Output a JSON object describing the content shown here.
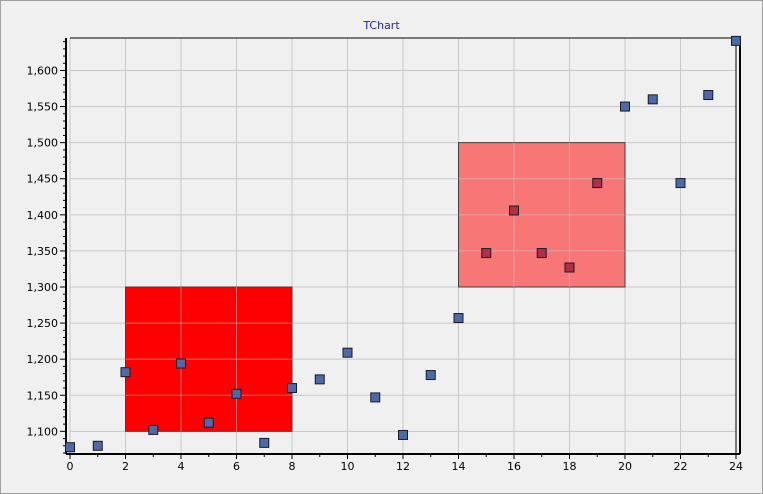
{
  "chart_data": {
    "type": "scatter",
    "title": "TChart",
    "xlabel": "",
    "ylabel": "",
    "xlim": [
      0,
      24
    ],
    "ylim": [
      1070,
      1645
    ],
    "x_ticks": [
      "0",
      "2",
      "4",
      "6",
      "8",
      "10",
      "12",
      "14",
      "16",
      "18",
      "20",
      "22",
      "24"
    ],
    "y_ticks": [
      "1,100",
      "1,150",
      "1,200",
      "1,250",
      "1,300",
      "1,350",
      "1,400",
      "1,450",
      "1,500",
      "1,550",
      "1,600"
    ],
    "y_tick_values": [
      1100,
      1150,
      1200,
      1250,
      1300,
      1350,
      1400,
      1450,
      1500,
      1550,
      1600
    ],
    "x_tick_values": [
      0,
      2,
      4,
      6,
      8,
      10,
      12,
      14,
      16,
      18,
      20,
      22,
      24
    ],
    "grid": true,
    "series": [
      {
        "color": "#4a6aa8",
        "x": [
          0,
          1,
          2,
          3,
          4,
          5,
          6,
          7,
          8,
          9,
          10,
          11,
          12,
          13,
          14,
          15,
          16,
          17,
          18,
          19,
          20,
          21,
          22,
          23,
          24
        ],
        "values": [
          1078,
          1080,
          1182,
          1102,
          1194,
          1112,
          1152,
          1084,
          1160,
          1172,
          1209,
          1147,
          1095,
          1178,
          1257,
          1347,
          1406,
          1347,
          1327,
          1444,
          1550,
          1560,
          1444,
          1566,
          1641
        ]
      }
    ],
    "rectangles": [
      {
        "x": [
          2,
          8
        ],
        "y": [
          1100,
          1300
        ],
        "color": "#ff0000"
      },
      {
        "x": [
          14,
          20
        ],
        "y": [
          1300,
          1500
        ],
        "color": "#f87676"
      }
    ]
  }
}
